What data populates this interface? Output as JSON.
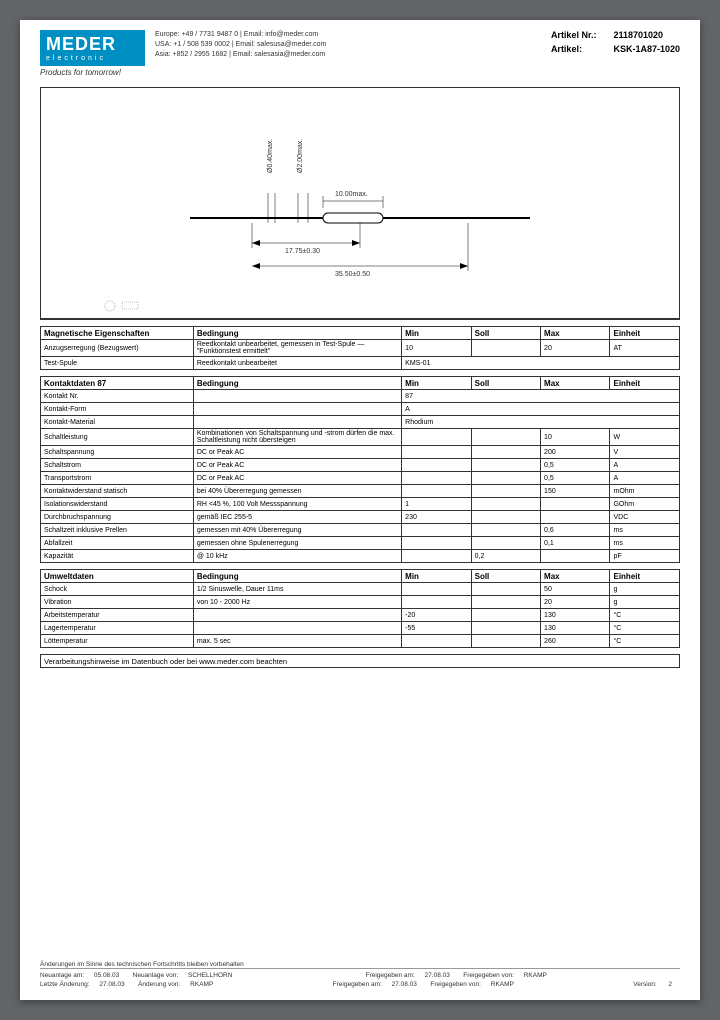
{
  "logo": {
    "main": "MEDER",
    "sub": "electronic",
    "tagline": "Products for tomorrow!"
  },
  "contacts": {
    "europe": "Europe:  +49 / 7731 9487 0 | Email: info@meder.com",
    "usa": "USA:  +1 / 508 539 0002 | Email: salesusa@meder.com",
    "asia": "Asia:  +852 / 2955 1682 | Email: salesasia@meder.com"
  },
  "article": {
    "nr_label": "Artikel Nr.:",
    "nr": "2118701020",
    "name_label": "Artikel:",
    "name": "KSK-1A87-1020"
  },
  "drawing": {
    "dim1": "Ø0.40max.",
    "dim2": "Ø2.00max.",
    "dim3": "10.00max.",
    "dim4": "17.75±0.30",
    "dim5": "35.50±0.50"
  },
  "tables": {
    "magnetic": {
      "title": "Magnetische Eigenschaften",
      "headers": [
        "Bedingung",
        "Min",
        "Soll",
        "Max",
        "Einheit"
      ],
      "rows": [
        {
          "name": "Anzugserregung (Bezugswert)",
          "cond": "Reedkontakt unbearbeitet, gemessen in Test-Spule — \"Funktionstest ermittelt\"",
          "min": "10",
          "soll": "",
          "max": "20",
          "unit": "AT"
        },
        {
          "name": "Test-Spule",
          "cond": "Reedkontakt unbearbeitet",
          "span": "KMS-01"
        }
      ]
    },
    "contact": {
      "title": "Kontaktdaten  87",
      "headers": [
        "Bedingung",
        "Min",
        "Soll",
        "Max",
        "Einheit"
      ],
      "rows": [
        {
          "name": "Kontakt Nr.",
          "span": "87"
        },
        {
          "name": "Kontakt-Form",
          "span": "A"
        },
        {
          "name": "Kontakt-Material",
          "span": "Rhodium"
        },
        {
          "name": "Schaltleistung",
          "cond": "Kombinationen von Schaltspannung und -strom dürfen die max. Schaltleistung nicht übersteigen",
          "max": "10",
          "unit": "W"
        },
        {
          "name": "Schaltspannung",
          "cond": "DC or Peak AC",
          "max": "200",
          "unit": "V"
        },
        {
          "name": "Schaltstrom",
          "cond": "DC or Peak AC",
          "max": "0,5",
          "unit": "A"
        },
        {
          "name": "Transportstrom",
          "cond": "DC or Peak AC",
          "max": "0,5",
          "unit": "A"
        },
        {
          "name": "Kontaktwiderstand statisch",
          "cond": "bei 40% Übererregung gemessen",
          "max": "150",
          "unit": "mOhm"
        },
        {
          "name": "Isolationswiderstand",
          "cond": "RH <45 %, 100 Volt Messspannung",
          "min": "1",
          "unit": "GOhm"
        },
        {
          "name": "Durchbruchspannung",
          "cond": "gemäß IEC 255-5",
          "min": "230",
          "unit": "VDC"
        },
        {
          "name": "Schaltzeit inklusive Prellen",
          "cond": "gemessen mit 40% Übererregung",
          "max": "0,6",
          "unit": "ms"
        },
        {
          "name": "Abfallzeit",
          "cond": "gemessen ohne Spulenerregung",
          "max": "0,1",
          "unit": "ms"
        },
        {
          "name": "Kapazität",
          "cond": "@ 10 kHz",
          "soll": "0,2",
          "unit": "pF"
        }
      ]
    },
    "environ": {
      "title": "Umweltdaten",
      "headers": [
        "Bedingung",
        "Min",
        "Soll",
        "Max",
        "Einheit"
      ],
      "rows": [
        {
          "name": "Schock",
          "cond": "1/2 Sinuswelle, Dauer 11ms",
          "max": "50",
          "unit": "g"
        },
        {
          "name": "Vibration",
          "cond": "von 10 - 2000 Hz",
          "max": "20",
          "unit": "g"
        },
        {
          "name": "Arbeitstemperatur",
          "min": "-20",
          "max": "130",
          "unit": "°C"
        },
        {
          "name": "Lagertemperatur",
          "min": "-55",
          "max": "130",
          "unit": "°C"
        },
        {
          "name": "Löttemperatur",
          "cond": "max. 5 sec",
          "max": "260",
          "unit": "°C"
        }
      ]
    },
    "note": "Verarbeitungshinweise im Datenbuch oder bei www.meder.com beachten"
  },
  "footer": {
    "change_note": "Änderungen im Sinne des technischen Fortschritts bleiben vorbehalten",
    "row1": {
      "a": "Neuanlage am:",
      "av": "05.08.03",
      "b": "Neuanlage von:",
      "bv": "SCHELLHORN",
      "c": "Freigegeben am:",
      "cv": "27.08.03",
      "d": "Freigegeben von:",
      "dv": "RKAMP"
    },
    "row2": {
      "a": "Letzte Änderung:",
      "av": "27.08.03",
      "b": "Änderung von:",
      "bv": "RKAMP",
      "c": "Freigegeben am:",
      "cv": "27.08.03",
      "d": "Freigegeben von:",
      "dv": "RKAMP",
      "e": "Version:",
      "ev": "2"
    }
  }
}
